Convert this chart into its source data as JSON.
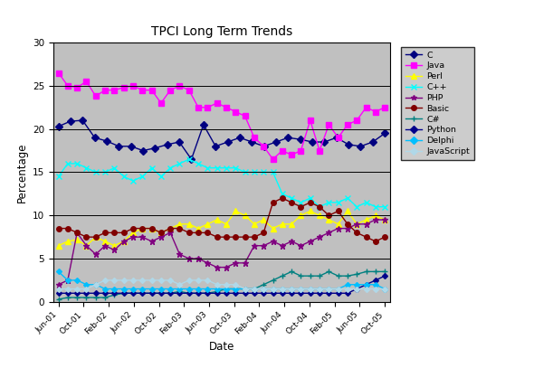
{
  "title": "TPCI Long Term Trends",
  "xlabel": "Date",
  "ylabel": "Percentage",
  "ylim": [
    0,
    30
  ],
  "yticks": [
    0,
    5,
    10,
    15,
    20,
    25,
    30
  ],
  "background_color": "#c0c0c0",
  "outer_bg": "#ffffff",
  "x_labels": [
    "Jun-01",
    "Oct-01",
    "Feb-02",
    "Jun-02",
    "Oct-02",
    "Feb-03",
    "Jun-03",
    "Oct-03",
    "Feb-04",
    "Jun-04",
    "Oct-04",
    "Feb-05",
    "Jun-05",
    "Oct-05"
  ],
  "series": {
    "C": {
      "color": "#000080",
      "marker": "D",
      "markersize": 4,
      "linewidth": 1.0,
      "values": [
        20.3,
        20.9,
        21.0,
        19.0,
        18.6,
        18.0,
        18.0,
        17.5,
        17.8,
        18.2,
        18.5,
        16.5,
        20.5,
        18.0,
        18.5,
        19.0,
        18.5,
        18.0,
        18.5,
        19.0,
        18.8,
        18.5,
        18.5,
        19.0,
        18.2,
        18.0,
        18.5,
        19.5
      ]
    },
    "Java": {
      "color": "#ff00ff",
      "marker": "s",
      "markersize": 4,
      "linewidth": 1.0,
      "values": [
        26.5,
        25.0,
        24.8,
        25.5,
        23.8,
        24.5,
        24.5,
        24.8,
        25.0,
        24.5,
        24.5,
        23.0,
        24.5,
        25.0,
        24.5,
        22.5,
        22.5,
        23.0,
        22.5,
        22.0,
        21.5,
        19.0,
        18.0,
        16.5,
        17.5,
        17.0,
        17.5,
        21.0,
        17.5,
        20.5,
        19.0,
        20.5,
        21.0,
        22.5,
        22.0,
        22.5
      ]
    },
    "Perl": {
      "color": "#ffff00",
      "marker": "^",
      "markersize": 5,
      "linewidth": 1.0,
      "values": [
        6.5,
        7.0,
        7.2,
        6.5,
        7.5,
        7.0,
        6.5,
        7.0,
        8.0,
        8.5,
        8.5,
        8.0,
        8.5,
        9.0,
        9.0,
        8.5,
        9.0,
        9.5,
        9.0,
        10.5,
        10.0,
        9.0,
        9.5,
        8.5,
        9.0,
        9.0,
        10.0,
        10.5,
        10.0,
        9.5,
        9.0,
        10.5,
        9.0,
        9.5,
        10.0,
        9.5
      ]
    },
    "C++": {
      "color": "#00ffff",
      "marker": "x",
      "markersize": 4,
      "linewidth": 1.0,
      "values": [
        14.5,
        16.0,
        16.0,
        15.5,
        15.0,
        15.0,
        15.5,
        14.5,
        14.0,
        14.5,
        15.5,
        14.5,
        15.5,
        16.0,
        16.5,
        16.0,
        15.5,
        15.5,
        15.5,
        15.5,
        15.0,
        15.0,
        15.0,
        15.0,
        12.5,
        12.0,
        11.5,
        12.0,
        11.0,
        11.5,
        11.5,
        12.0,
        11.0,
        11.5,
        11.0,
        11.0
      ]
    },
    "PHP": {
      "color": "#800080",
      "marker": "*",
      "markersize": 5,
      "linewidth": 1.0,
      "values": [
        2.0,
        2.5,
        8.0,
        6.5,
        5.5,
        6.5,
        6.0,
        7.0,
        7.5,
        7.5,
        7.0,
        7.5,
        8.0,
        5.5,
        5.0,
        5.0,
        4.5,
        4.0,
        4.0,
        4.5,
        4.5,
        6.5,
        6.5,
        7.0,
        6.5,
        7.0,
        6.5,
        7.0,
        7.5,
        8.0,
        8.5,
        8.5,
        9.0,
        9.0,
        9.5,
        9.5
      ]
    },
    "Basic": {
      "color": "#800000",
      "marker": "o",
      "markersize": 4,
      "linewidth": 1.0,
      "values": [
        8.5,
        8.5,
        8.0,
        7.5,
        7.5,
        8.0,
        8.0,
        8.0,
        8.5,
        8.5,
        8.5,
        8.0,
        8.5,
        8.5,
        8.0,
        8.0,
        8.0,
        7.5,
        7.5,
        7.5,
        7.5,
        7.5,
        8.0,
        11.5,
        12.0,
        11.5,
        11.0,
        11.5,
        11.0,
        10.0,
        10.5,
        9.0,
        8.0,
        7.5,
        7.0,
        7.5
      ]
    },
    "C#": {
      "color": "#008080",
      "marker": "+",
      "markersize": 4,
      "linewidth": 1.0,
      "values": [
        0.3,
        0.5,
        0.5,
        0.5,
        0.5,
        0.5,
        0.8,
        1.0,
        1.0,
        1.0,
        1.0,
        1.0,
        1.0,
        1.2,
        1.0,
        1.0,
        1.0,
        1.2,
        1.5,
        1.5,
        1.5,
        1.5,
        2.0,
        2.5,
        3.0,
        3.5,
        3.0,
        3.0,
        3.0,
        3.5,
        3.0,
        3.0,
        3.2,
        3.5,
        3.5,
        3.5
      ]
    },
    "Python": {
      "color": "#00008b",
      "marker": "D",
      "markersize": 3,
      "linewidth": 1.0,
      "values": [
        1.0,
        1.0,
        1.0,
        1.0,
        1.0,
        1.0,
        1.0,
        1.0,
        1.0,
        1.0,
        1.0,
        1.0,
        1.0,
        1.0,
        1.0,
        1.0,
        1.0,
        1.0,
        1.0,
        1.0,
        1.0,
        1.0,
        1.0,
        1.0,
        1.0,
        1.0,
        1.0,
        1.0,
        1.0,
        1.0,
        1.0,
        1.0,
        1.5,
        2.0,
        2.5,
        3.0
      ]
    },
    "Delphi": {
      "color": "#00bfff",
      "marker": "D",
      "markersize": 3,
      "linewidth": 1.0,
      "values": [
        3.5,
        2.5,
        2.5,
        2.0,
        2.0,
        1.5,
        1.5,
        1.5,
        1.5,
        1.5,
        1.5,
        1.5,
        1.5,
        1.5,
        1.5,
        1.5,
        1.5,
        1.5,
        1.5,
        1.5,
        1.5,
        1.5,
        1.5,
        1.5,
        1.5,
        1.5,
        1.5,
        1.5,
        1.5,
        1.5,
        1.5,
        2.0,
        2.0,
        2.0,
        2.0,
        1.5
      ]
    },
    "JavaScript": {
      "color": "#b0d8e8",
      "marker": "D",
      "markersize": 3,
      "linewidth": 1.0,
      "values": [
        1.5,
        1.5,
        1.5,
        1.5,
        2.0,
        2.5,
        2.5,
        2.5,
        2.5,
        2.5,
        2.5,
        2.5,
        2.5,
        2.0,
        2.5,
        2.5,
        2.5,
        2.0,
        2.0,
        2.0,
        1.5,
        1.5,
        1.5,
        1.5,
        1.5,
        1.5,
        1.5,
        1.5,
        1.5,
        1.5,
        1.5,
        1.5,
        1.5,
        1.5,
        1.5,
        1.5
      ]
    }
  }
}
